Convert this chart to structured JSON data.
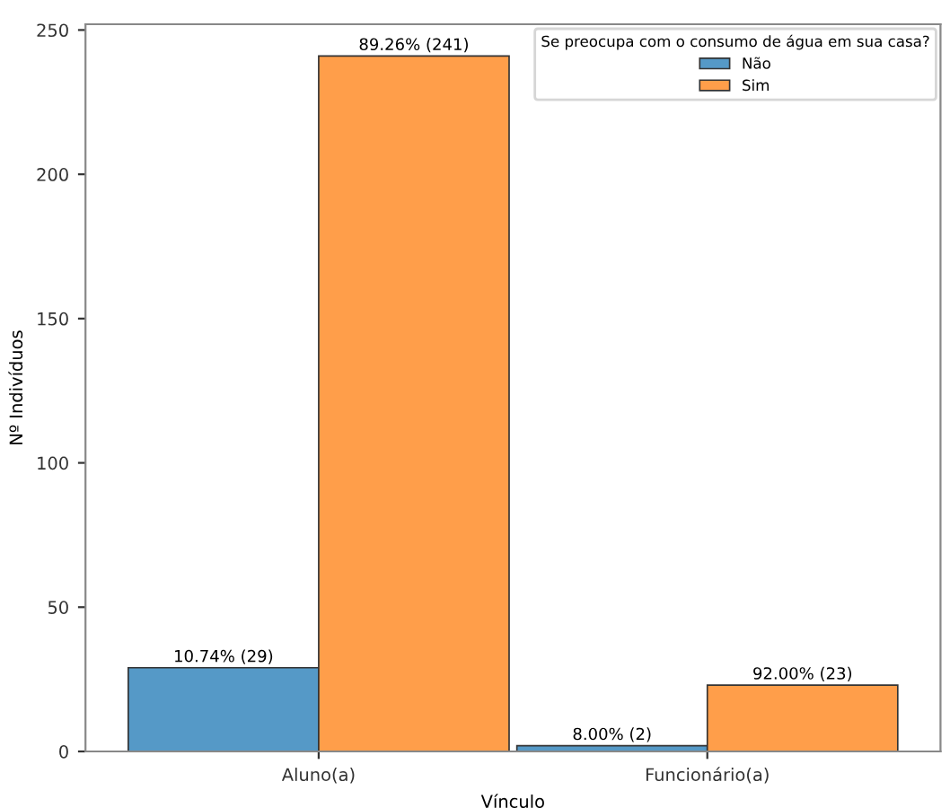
{
  "chart_data": {
    "type": "bar",
    "xlabel": "Vínculo",
    "ylabel": "Nº Indivíduos",
    "legend_title": "Se preocupa com o consumo de água em sua casa?",
    "categories": [
      "Aluno(a)",
      "Funcionário(a)"
    ],
    "series": [
      {
        "name": "Não",
        "color": "#5599c7",
        "values": [
          29,
          2
        ],
        "value_labels": [
          "10.74% (29)",
          "8.00% (2)"
        ]
      },
      {
        "name": "Sim",
        "color": "#ff9e4a",
        "values": [
          241,
          23
        ],
        "value_labels": [
          "89.26% (241)",
          "92.00% (23)"
        ]
      }
    ],
    "ylim": [
      0,
      252
    ],
    "yticks": [
      0,
      50,
      100,
      150,
      200,
      250
    ],
    "grid": false,
    "legend": "top right"
  }
}
